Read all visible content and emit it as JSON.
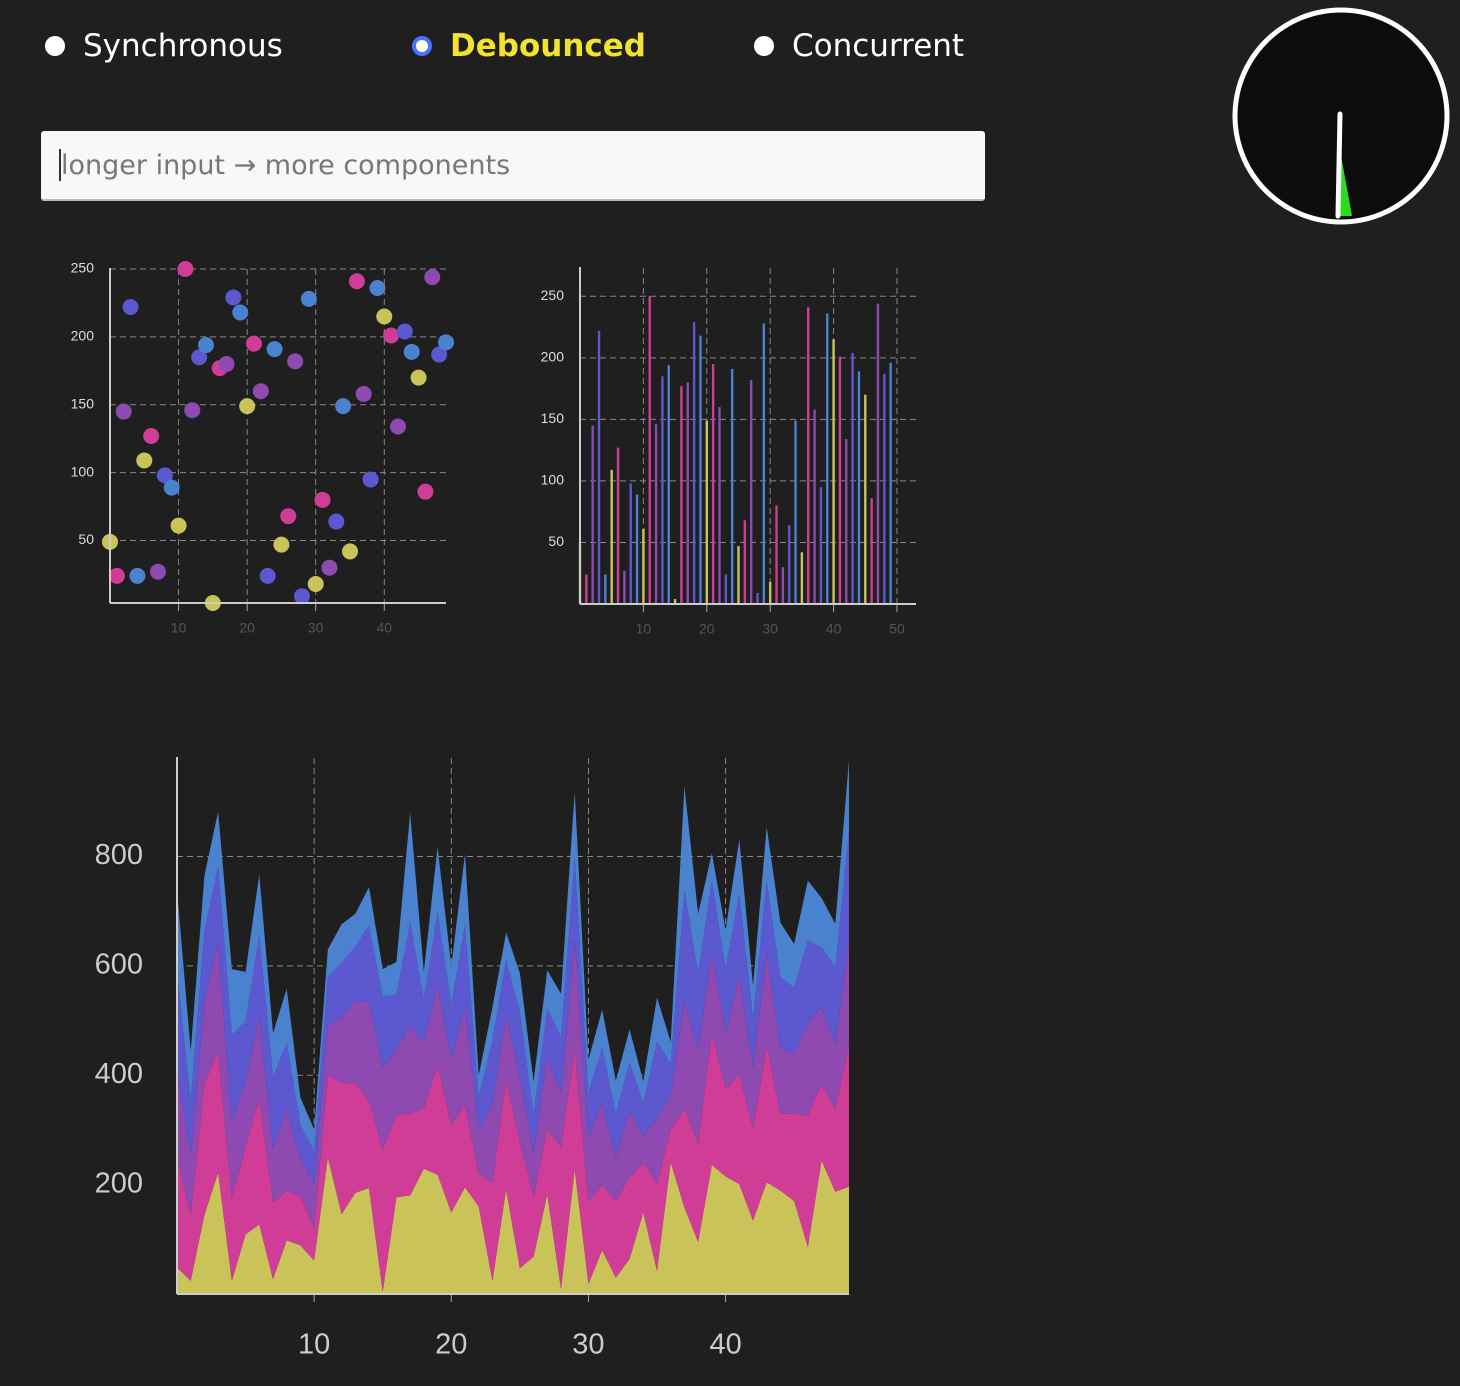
{
  "controls": {
    "modes": [
      "Synchronous",
      "Debounced",
      "Concurrent"
    ],
    "selected": 1,
    "placeholder": "longer input → more components"
  },
  "chart_data": [
    {
      "type": "scatter",
      "colors": [
        "#c9c35a",
        "#d03d96",
        "#8e4ab0",
        "#5b58d0",
        "#4a82d0"
      ],
      "x": [
        0,
        1,
        2,
        3,
        4,
        5,
        6,
        7,
        8,
        9,
        10,
        11,
        12,
        13,
        14,
        15,
        16,
        17,
        18,
        19,
        20,
        21,
        22,
        23,
        24,
        25,
        26,
        27,
        28,
        29,
        30,
        31,
        32,
        33,
        34,
        35,
        36,
        37,
        38,
        39,
        40,
        41,
        42,
        43,
        44,
        45,
        46,
        47,
        48,
        49
      ],
      "y": [
        49,
        24,
        145,
        222,
        24,
        109,
        127,
        27,
        98,
        89,
        61,
        250,
        146,
        185,
        194,
        4,
        177,
        180,
        229,
        218,
        149,
        195,
        160,
        24,
        191,
        47,
        68,
        182,
        9,
        228,
        18,
        80,
        30,
        64,
        149,
        42,
        241,
        158,
        95,
        236,
        215,
        201,
        134,
        204,
        189,
        170,
        86,
        244,
        187,
        196
      ],
      "xlim": [
        0,
        49
      ],
      "ylim": [
        4,
        250
      ],
      "xticks": [
        10,
        20,
        30,
        40
      ],
      "yticks": [
        50,
        100,
        150,
        200,
        250
      ],
      "grid": true
    },
    {
      "type": "bar",
      "colors": [
        "#c9c35a",
        "#d03d96",
        "#8e4ab0",
        "#5b58d0",
        "#4a82d0"
      ],
      "x": [
        0,
        1,
        2,
        3,
        4,
        5,
        6,
        7,
        8,
        9,
        10,
        11,
        12,
        13,
        14,
        15,
        16,
        17,
        18,
        19,
        20,
        21,
        22,
        23,
        24,
        25,
        26,
        27,
        28,
        29,
        30,
        31,
        32,
        33,
        34,
        35,
        36,
        37,
        38,
        39,
        40,
        41,
        42,
        43,
        44,
        45,
        46,
        47,
        48,
        49
      ],
      "values": [
        49,
        24,
        145,
        222,
        24,
        109,
        127,
        27,
        98,
        89,
        61,
        250,
        146,
        185,
        194,
        4,
        177,
        180,
        229,
        218,
        149,
        195,
        160,
        24,
        191,
        47,
        68,
        182,
        9,
        228,
        18,
        80,
        30,
        64,
        149,
        42,
        241,
        158,
        95,
        236,
        215,
        201,
        134,
        204,
        189,
        170,
        86,
        244,
        187,
        196
      ],
      "xlim": [
        0,
        53
      ],
      "ylim": [
        0,
        273
      ],
      "xticks": [
        10,
        20,
        30,
        40,
        50
      ],
      "yticks": [
        50,
        100,
        150,
        200,
        250
      ],
      "grid": true
    },
    {
      "type": "area",
      "x": [
        0,
        1,
        2,
        3,
        4,
        5,
        6,
        7,
        8,
        9,
        10,
        11,
        12,
        13,
        14,
        15,
        16,
        17,
        18,
        19,
        20,
        21,
        22,
        23,
        24,
        25,
        26,
        27,
        28,
        29,
        30,
        31,
        32,
        33,
        34,
        35,
        36,
        37,
        38,
        39,
        40,
        41,
        42,
        43,
        44,
        45,
        46,
        47,
        48,
        49
      ],
      "series": [
        {
          "color": "#c9c35a",
          "values": [
            49,
            24,
            145,
            222,
            24,
            109,
            127,
            27,
            98,
            89,
            61,
            250,
            146,
            185,
            194,
            4,
            177,
            180,
            229,
            218,
            149,
            195,
            160,
            24,
            191,
            47,
            68,
            182,
            9,
            228,
            18,
            80,
            30,
            64,
            149,
            42,
            241,
            158,
            95,
            236,
            215,
            201,
            134,
            204,
            189,
            170,
            86,
            244,
            187,
            196
          ]
        },
        {
          "color": "#d03d96",
          "values": [
            200,
            120,
            240,
            220,
            150,
            160,
            230,
            140,
            90,
            90,
            60,
            150,
            240,
            200,
            160,
            260,
            150,
            150,
            110,
            200,
            160,
            150,
            60,
            180,
            200,
            230,
            110,
            120,
            260,
            220,
            150,
            120,
            140,
            150,
            90,
            160,
            60,
            180,
            180,
            240,
            160,
            200,
            170,
            250,
            140,
            160,
            240,
            140,
            150,
            260
          ]
        },
        {
          "color": "#8e4ab0",
          "values": [
            160,
            110,
            150,
            200,
            140,
            120,
            150,
            100,
            150,
            70,
            80,
            90,
            120,
            150,
            180,
            150,
            120,
            160,
            120,
            150,
            120,
            180,
            80,
            140,
            120,
            120,
            80,
            130,
            100,
            200,
            120,
            150,
            80,
            120,
            50,
            120,
            60,
            200,
            170,
            150,
            100,
            180,
            110,
            170,
            120,
            110,
            170,
            140,
            120,
            190
          ]
        },
        {
          "color": "#5b58d0",
          "values": [
            180,
            100,
            130,
            140,
            160,
            110,
            150,
            130,
            120,
            60,
            60,
            90,
            100,
            100,
            140,
            130,
            100,
            190,
            80,
            130,
            100,
            150,
            60,
            120,
            100,
            120,
            70,
            90,
            100,
            150,
            80,
            100,
            80,
            90,
            60,
            140,
            60,
            200,
            140,
            130,
            120,
            150,
            90,
            130,
            130,
            120,
            150,
            110,
            140,
            200
          ]
        },
        {
          "color": "#4a82d0",
          "values": [
            150,
            90,
            100,
            100,
            120,
            90,
            110,
            80,
            100,
            50,
            40,
            50,
            70,
            60,
            70,
            50,
            60,
            200,
            50,
            120,
            70,
            130,
            40,
            60,
            50,
            70,
            60,
            70,
            80,
            120,
            60,
            70,
            60,
            60,
            40,
            80,
            40,
            190,
            110,
            50,
            70,
            100,
            60,
            100,
            100,
            80,
            110,
            90,
            80,
            130
          ]
        }
      ],
      "xlim": [
        0,
        49
      ],
      "ylim": [
        0,
        980
      ],
      "xticks": [
        10,
        20,
        30,
        40
      ],
      "yticks": [
        200,
        400,
        600,
        800
      ],
      "grid": true
    }
  ]
}
